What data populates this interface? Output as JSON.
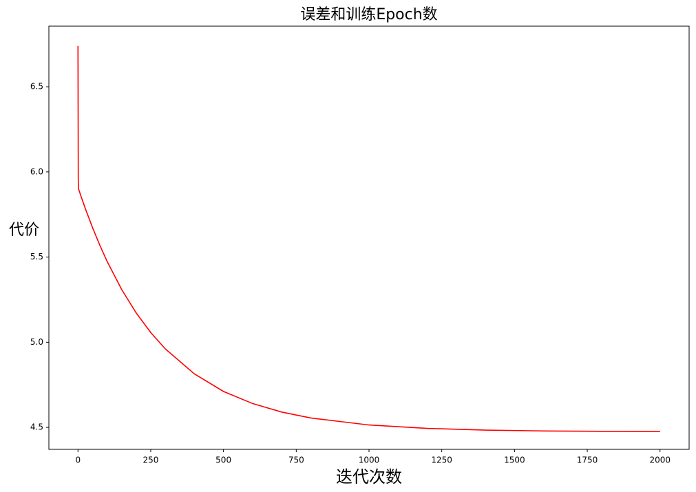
{
  "chart_data": {
    "type": "line",
    "title": "误差和训练Epoch数",
    "x_label": "迭代次数",
    "y_label": "代价",
    "x": [
      0,
      1,
      2,
      5,
      10,
      25,
      50,
      75,
      100,
      150,
      200,
      250,
      300,
      400,
      500,
      600,
      700,
      800,
      1000,
      1200,
      1400,
      1600,
      1800,
      2000
    ],
    "series": [
      {
        "name": "代价",
        "color": "#ff0000",
        "values": [
          6.74,
          5.95,
          5.9,
          5.885,
          5.859,
          5.786,
          5.673,
          5.57,
          5.475,
          5.31,
          5.172,
          5.057,
          4.961,
          4.814,
          4.711,
          4.64,
          4.59,
          4.555,
          4.514,
          4.494,
          4.484,
          4.479,
          4.477,
          4.476
        ]
      }
    ],
    "xlim": [
      -100,
      2100
    ],
    "xticks": [
      0,
      250,
      500,
      750,
      1000,
      1250,
      1500,
      1750,
      2000
    ],
    "ylim": [
      4.371,
      6.856
    ],
    "yticks": [
      4.5,
      {
        "value": 5.0,
        "label": "5.0"
      },
      5.5,
      {
        "value": 6.0,
        "label": "6.0"
      },
      6.5
    ]
  }
}
